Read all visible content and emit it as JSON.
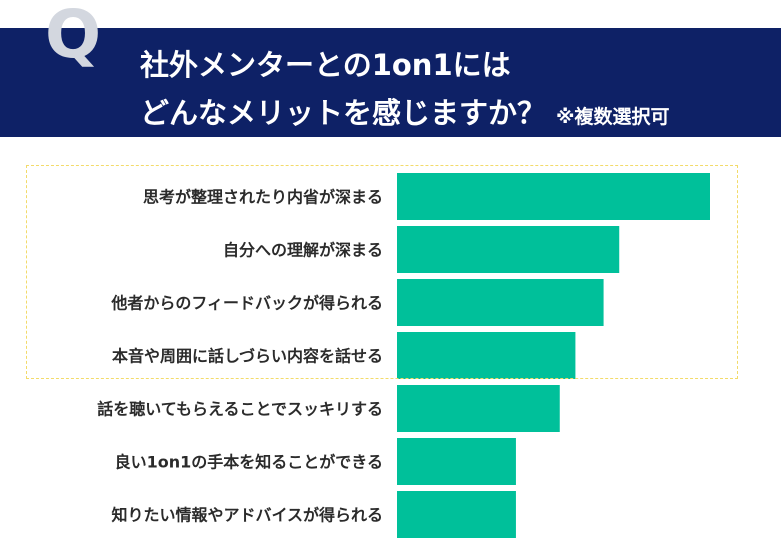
{
  "header": {
    "q_mark": "Q",
    "title_line1": "社外メンターとの1on1には",
    "title_line2": "どんなメリットを感じますか？",
    "note": "※複数選択可"
  },
  "colors": {
    "header_bg": "#0e2166",
    "bar": "#00c09a",
    "highlight_border": "#f3db6a"
  },
  "chart_data": {
    "type": "bar",
    "orientation": "horizontal",
    "categories": [
      "思考が整理されたり内省が深まる",
      "自分への理解が深まる",
      "他者からのフィードバックが得られる",
      "本音や周囲に話しづらい内容を話せる",
      "話を聴いてもらえることでスッキリする",
      "良い1on1の手本を知ることができる",
      "知りたい情報やアドバイスが得られる"
    ],
    "values": [
      100,
      71,
      66,
      57,
      52,
      38,
      38
    ],
    "highlighted_top": 4,
    "grid": false,
    "legend": "none"
  }
}
